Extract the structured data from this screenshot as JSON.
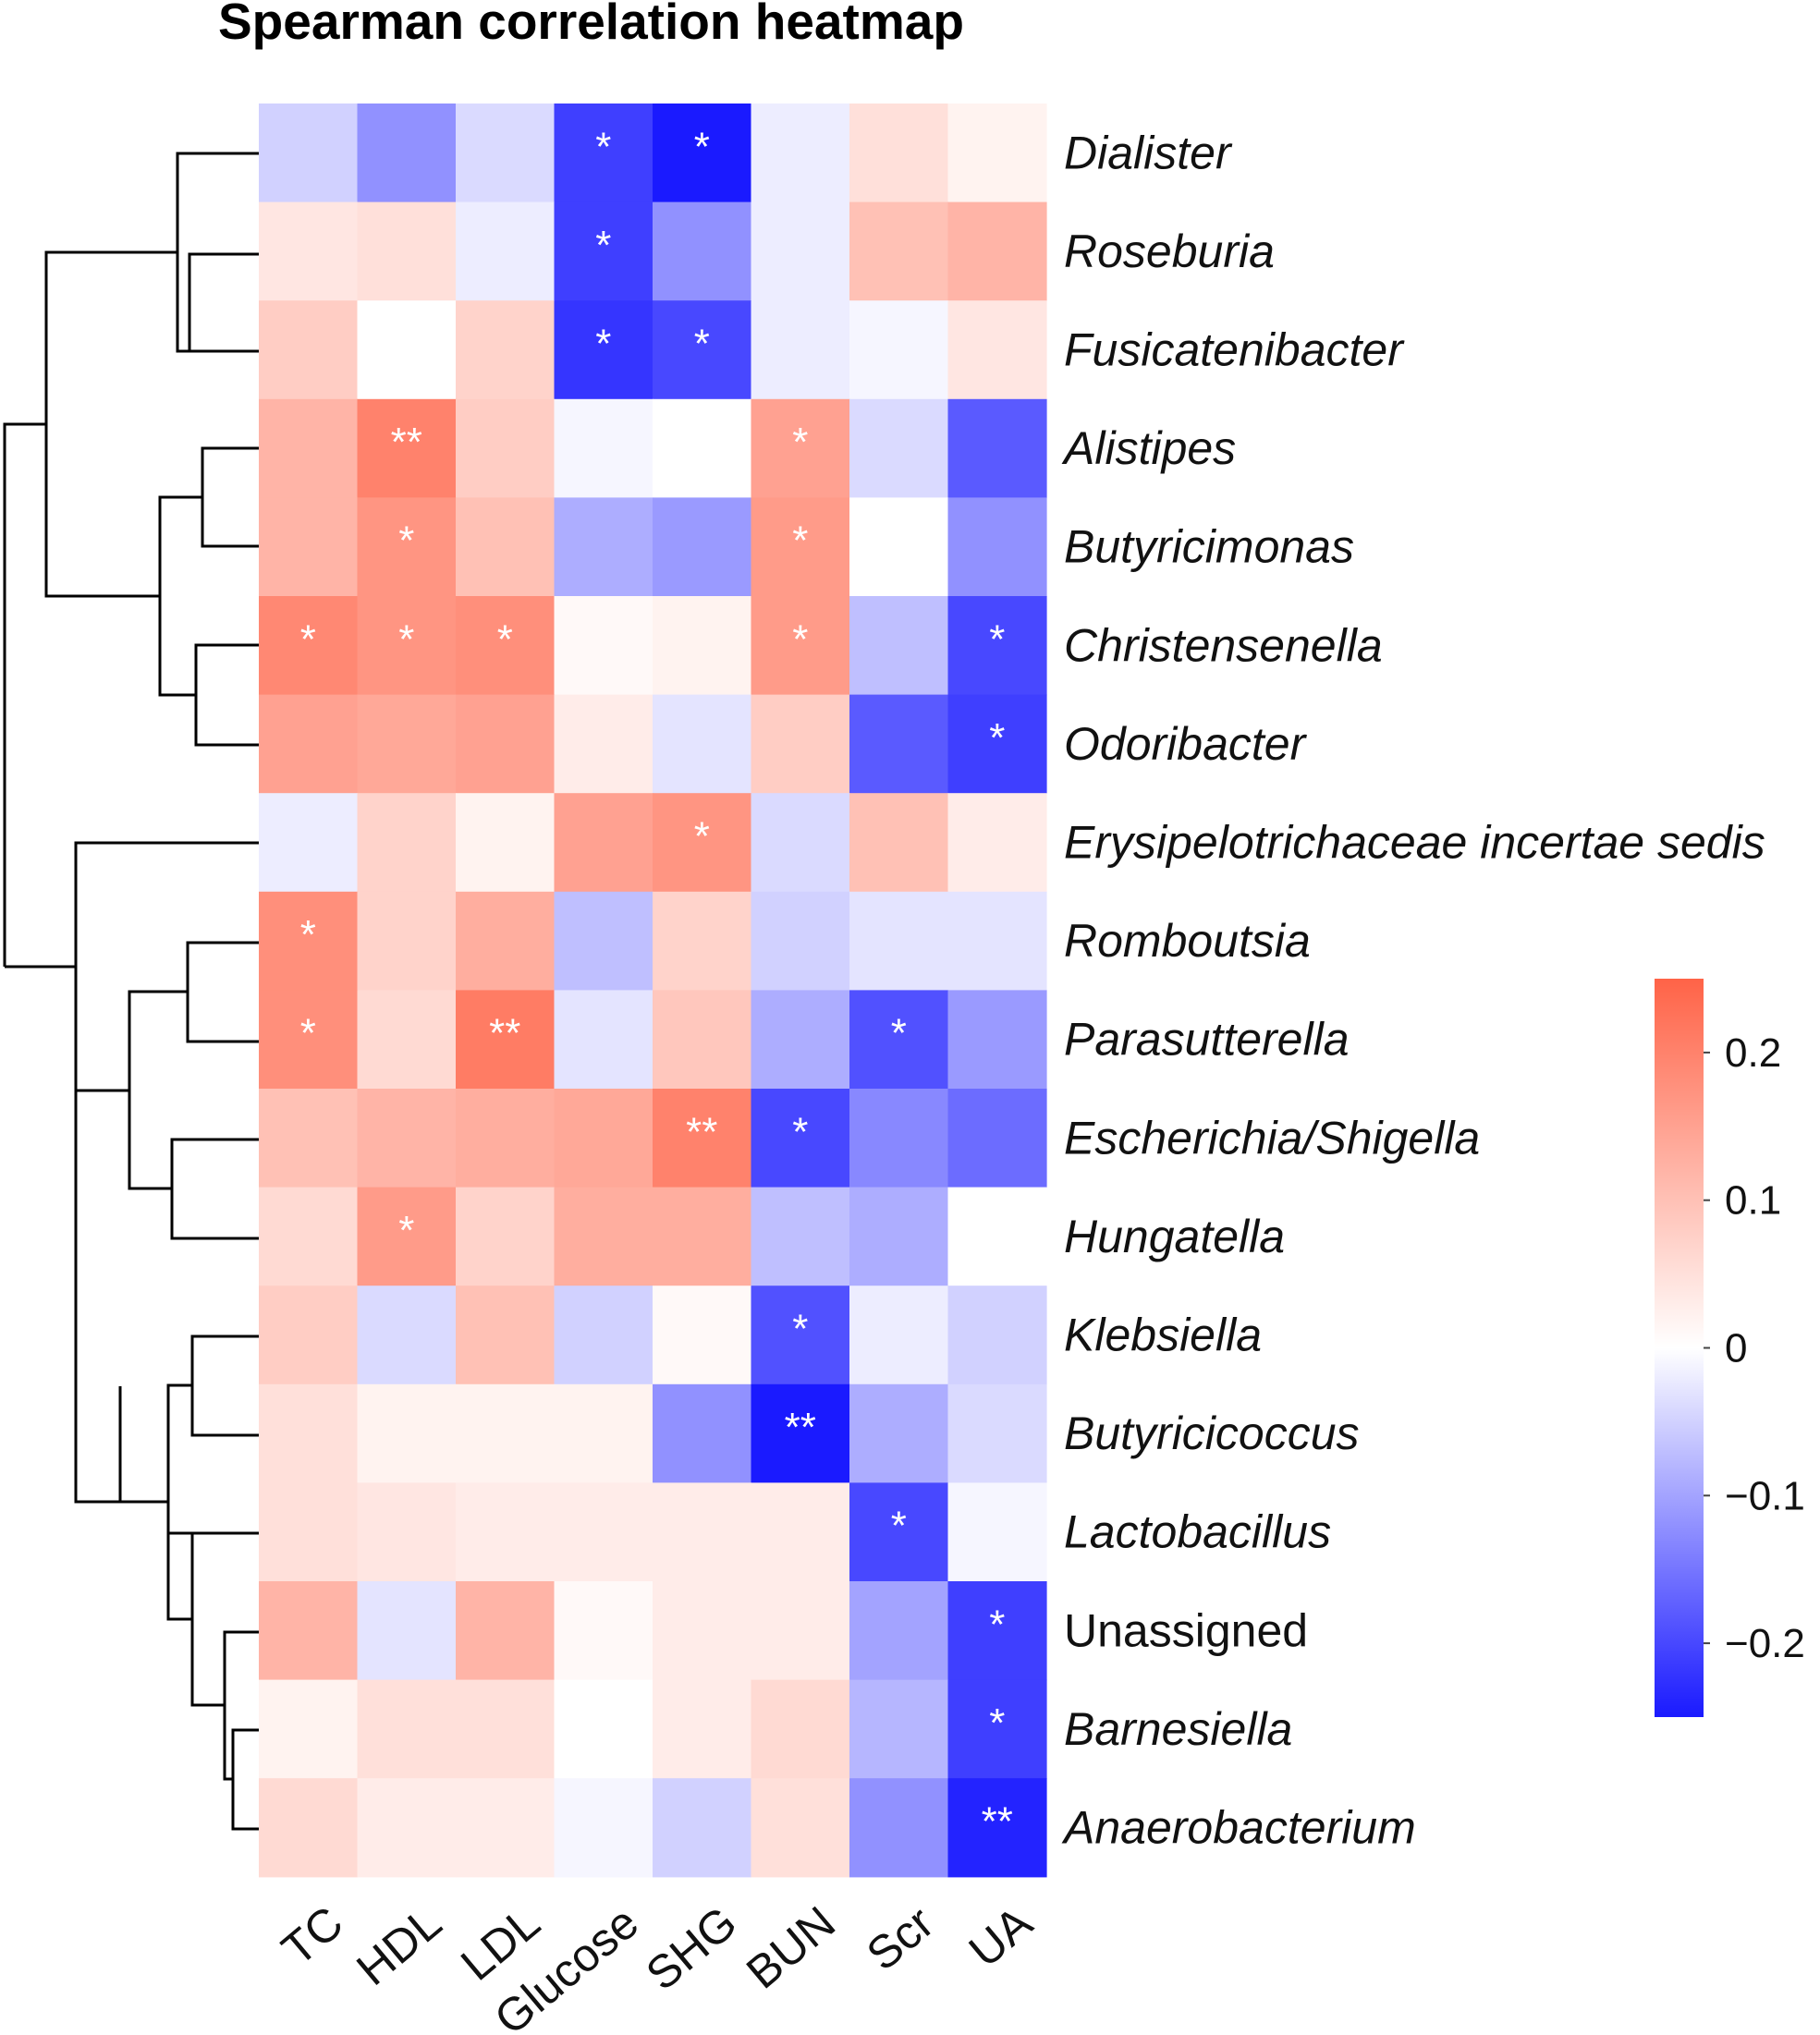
{
  "chart_data": {
    "type": "heatmap",
    "title": "Spearman correlation heatmap",
    "columns": [
      "TC",
      "HDL",
      "LDL",
      "Glucose",
      "SHG",
      "BUN",
      "Scr",
      "UA"
    ],
    "rows": [
      {
        "name": "Dialister",
        "italic": true,
        "values": [
          -0.05,
          -0.12,
          -0.04,
          -0.21,
          -0.25,
          -0.02,
          0.05,
          0.02
        ],
        "sig": [
          "",
          "",
          "",
          "*",
          "*",
          "",
          "",
          ""
        ]
      },
      {
        "name": "Roseburia",
        "italic": true,
        "values": [
          0.04,
          0.05,
          -0.02,
          -0.21,
          -0.12,
          -0.02,
          0.1,
          0.12
        ],
        "sig": [
          "",
          "",
          "",
          "*",
          "",
          "",
          "",
          ""
        ]
      },
      {
        "name": "Fusicatenibacter",
        "italic": true,
        "values": [
          0.08,
          0.0,
          0.07,
          -0.22,
          -0.2,
          -0.02,
          -0.01,
          0.04
        ],
        "sig": [
          "",
          "",
          "",
          "*",
          "*",
          "",
          "",
          ""
        ]
      },
      {
        "name": "Alistipes",
        "italic": true,
        "values": [
          0.12,
          0.2,
          0.08,
          -0.01,
          0.0,
          0.15,
          -0.04,
          -0.18
        ],
        "sig": [
          "",
          "**",
          "",
          "",
          "",
          "*",
          "",
          ""
        ]
      },
      {
        "name": "Butyricimonas",
        "italic": true,
        "values": [
          0.12,
          0.17,
          0.1,
          -0.09,
          -0.11,
          0.16,
          0.0,
          -0.12
        ],
        "sig": [
          "",
          "*",
          "",
          "",
          "",
          "*",
          "",
          ""
        ]
      },
      {
        "name": "Christensenella",
        "italic": true,
        "values": [
          0.19,
          0.17,
          0.18,
          0.01,
          0.02,
          0.16,
          -0.07,
          -0.2
        ],
        "sig": [
          "*",
          "*",
          "*",
          "",
          "",
          "*",
          "",
          "*"
        ]
      },
      {
        "name": "Odoribacter",
        "italic": true,
        "values": [
          0.15,
          0.14,
          0.15,
          0.03,
          -0.03,
          0.08,
          -0.18,
          -0.21
        ],
        "sig": [
          "",
          "",
          "",
          "",
          "",
          "",
          "",
          "*"
        ]
      },
      {
        "name": "Erysipelotrichaceae incertae sedis",
        "italic": true,
        "values": [
          -0.02,
          0.07,
          0.02,
          0.15,
          0.17,
          -0.04,
          0.1,
          0.03
        ],
        "sig": [
          "",
          "",
          "",
          "",
          "*",
          "",
          "",
          ""
        ]
      },
      {
        "name": "Romboutsia",
        "italic": true,
        "values": [
          0.18,
          0.07,
          0.13,
          -0.07,
          0.07,
          -0.05,
          -0.03,
          -0.03
        ],
        "sig": [
          "*",
          "",
          "",
          "",
          "",
          "",
          "",
          ""
        ]
      },
      {
        "name": "Parasutterella",
        "italic": true,
        "values": [
          0.18,
          0.06,
          0.21,
          -0.03,
          0.09,
          -0.09,
          -0.19,
          -0.11
        ],
        "sig": [
          "*",
          "",
          "**",
          "",
          "",
          "",
          "*",
          ""
        ]
      },
      {
        "name": "Escherichia/Shigella",
        "italic": true,
        "values": [
          0.1,
          0.12,
          0.13,
          0.14,
          0.2,
          -0.2,
          -0.13,
          -0.16
        ],
        "sig": [
          "",
          "",
          "",
          "",
          "**",
          "*",
          "",
          ""
        ]
      },
      {
        "name": "Hungatella",
        "italic": true,
        "values": [
          0.06,
          0.16,
          0.07,
          0.13,
          0.13,
          -0.07,
          -0.09,
          0.0
        ],
        "sig": [
          "",
          "*",
          "",
          "",
          "",
          "",
          "",
          ""
        ]
      },
      {
        "name": "Klebsiella",
        "italic": true,
        "values": [
          0.08,
          -0.04,
          0.1,
          -0.05,
          0.01,
          -0.19,
          -0.02,
          -0.05
        ],
        "sig": [
          "",
          "",
          "",
          "",
          "",
          "*",
          "",
          ""
        ]
      },
      {
        "name": "Butyricicoccus",
        "italic": true,
        "values": [
          0.05,
          0.02,
          0.02,
          0.02,
          -0.12,
          -0.26,
          -0.09,
          -0.04
        ],
        "sig": [
          "",
          "",
          "",
          "",
          "",
          "**",
          "",
          ""
        ]
      },
      {
        "name": "Lactobacillus",
        "italic": true,
        "values": [
          0.05,
          0.04,
          0.03,
          0.03,
          0.03,
          0.03,
          -0.2,
          -0.01
        ],
        "sig": [
          "",
          "",
          "",
          "",
          "",
          "",
          "*",
          ""
        ]
      },
      {
        "name": "Unassigned",
        "italic": false,
        "values": [
          0.12,
          -0.03,
          0.12,
          0.01,
          0.03,
          0.03,
          -0.1,
          -0.21
        ],
        "sig": [
          "",
          "",
          "",
          "",
          "",
          "",
          "",
          "*"
        ]
      },
      {
        "name": "Barnesiella",
        "italic": true,
        "values": [
          0.02,
          0.05,
          0.05,
          0.0,
          0.03,
          0.06,
          -0.08,
          -0.21
        ],
        "sig": [
          "",
          "",
          "",
          "",
          "",
          "",
          "",
          "*"
        ]
      },
      {
        "name": "Anaerobacterium",
        "italic": true,
        "values": [
          0.06,
          0.03,
          0.03,
          -0.01,
          -0.05,
          0.05,
          -0.12,
          -0.24
        ],
        "sig": [
          "",
          "",
          "",
          "",
          "",
          "",
          "",
          "**"
        ]
      }
    ],
    "color_scale": {
      "min": -0.25,
      "max": 0.25,
      "low_color": "#1a1aff",
      "mid_color": "#ffffff",
      "high_color": "#ff6347"
    },
    "legend_ticks": [
      {
        "value": 0.2,
        "label": "0.2"
      },
      {
        "value": 0.1,
        "label": "0.1"
      },
      {
        "value": 0.0,
        "label": "0"
      },
      {
        "value": -0.1,
        "label": "−0.1"
      },
      {
        "value": -0.2,
        "label": "−0.2"
      }
    ]
  }
}
